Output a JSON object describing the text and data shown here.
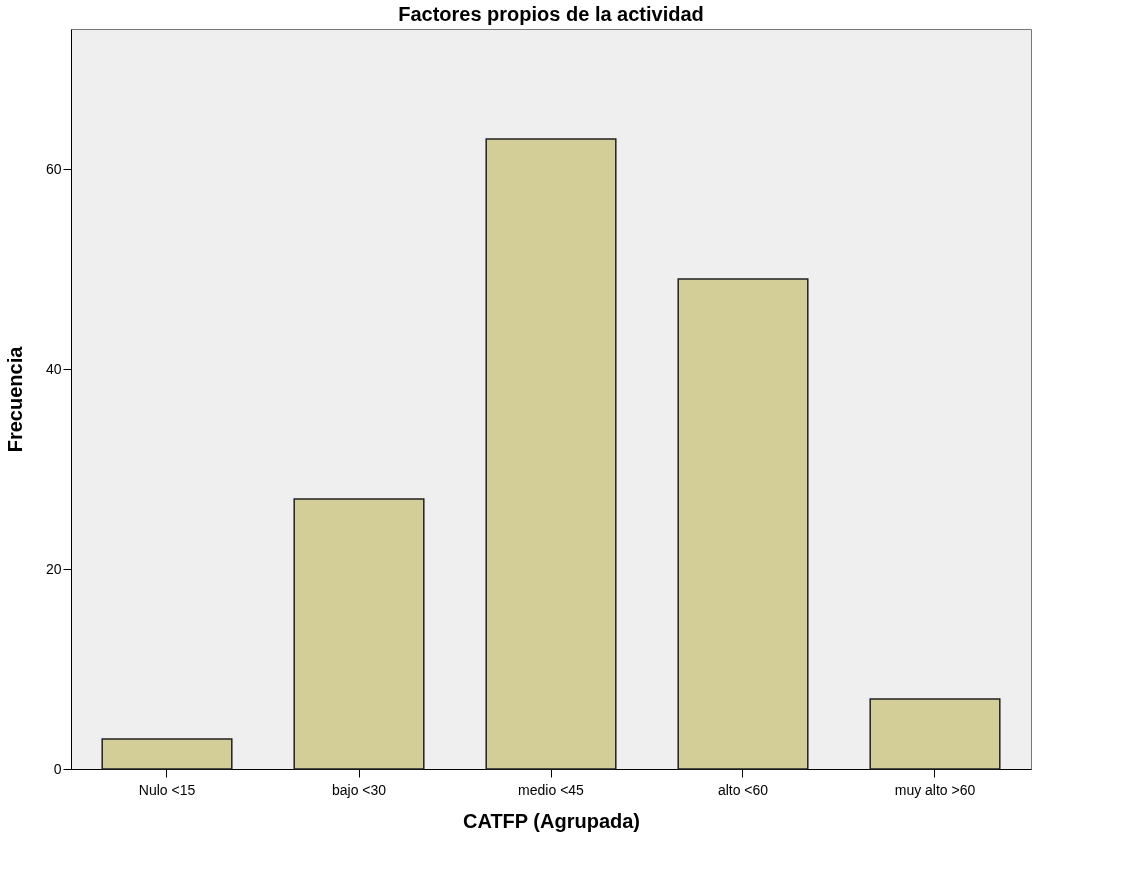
{
  "chart_data": {
    "type": "bar",
    "title": "Factores propios de la actividad",
    "xlabel": "CATFP (Agrupada)",
    "ylabel": "Frecuencia",
    "categories": [
      "Nulo <15",
      "bajo <30",
      "medio <45",
      "alto <60",
      "muy alto >60"
    ],
    "values": [
      3,
      27,
      63,
      49,
      7
    ],
    "color": "#d3cd98",
    "ylim": [
      0,
      74
    ],
    "yticks": [
      0,
      20,
      40,
      60
    ],
    "grid": false
  }
}
